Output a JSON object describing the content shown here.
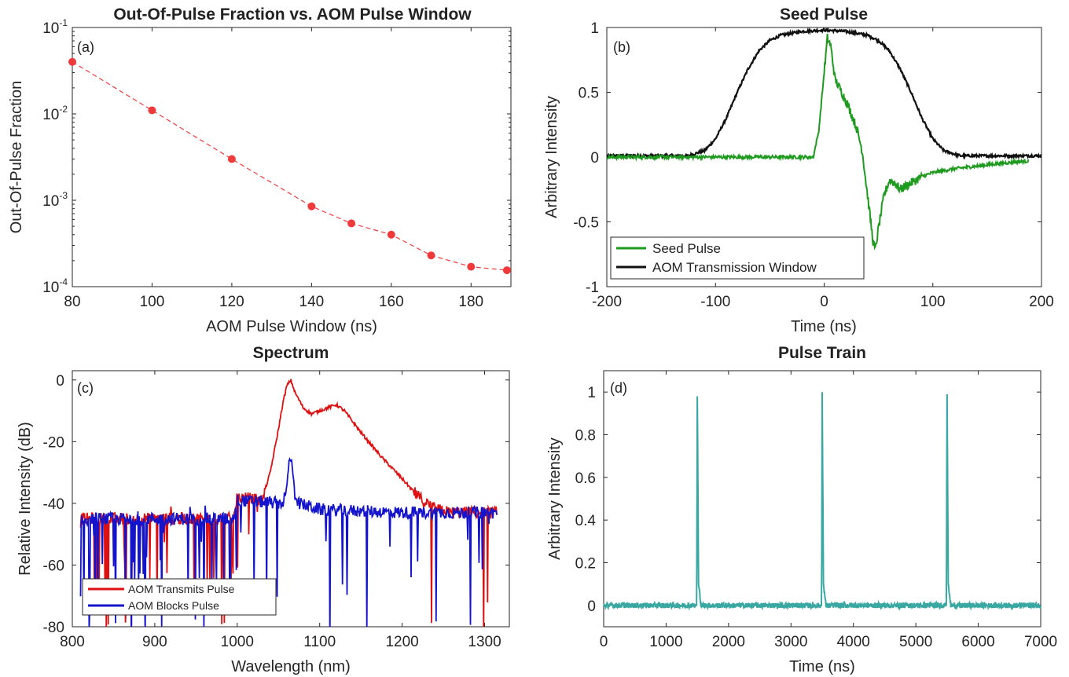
{
  "chart_data": [
    {
      "id": "a",
      "type": "scatter",
      "title": "Out-Of-Pulse Fraction vs. AOM Pulse Window",
      "panel_label": "(a)",
      "xlabel": "AOM Pulse Window (ns)",
      "ylabel": "Out-Of-Pulse Fraction",
      "xlim": [
        80,
        190
      ],
      "ylim": [
        0.0001,
        0.1
      ],
      "yscale": "log",
      "xticks": [
        "80",
        "100",
        "120",
        "140",
        "160",
        "180"
      ],
      "yticks": [
        {
          "base": "10",
          "exp": "-4"
        },
        {
          "base": "10",
          "exp": "-3"
        },
        {
          "base": "10",
          "exp": "-2"
        },
        {
          "base": "10",
          "exp": "-1"
        }
      ],
      "series": [
        {
          "name": "Out-Of-Pulse Fraction",
          "color": "#ee3a3a",
          "x": [
            80,
            100,
            120,
            140,
            150,
            160,
            170,
            180,
            189
          ],
          "y": [
            0.04,
            0.011,
            0.003,
            0.00085,
            0.00054,
            0.0004,
            0.00023,
            0.00017,
            0.000155
          ]
        }
      ]
    },
    {
      "id": "b",
      "type": "line",
      "title": "Seed Pulse",
      "panel_label": "(b)",
      "xlabel": "Time (ns)",
      "ylabel": "Arbitrary Intensity",
      "xlim": [
        -200,
        200
      ],
      "ylim": [
        -1,
        1
      ],
      "xticks": [
        "-200",
        "-100",
        "0",
        "100",
        "200"
      ],
      "yticks": [
        "-1",
        "-0.5",
        "0",
        "0.5",
        "1"
      ],
      "legend": {
        "position": "bottom-left",
        "entries": [
          "Seed Pulse",
          "AOM Transmission Window"
        ]
      },
      "series": [
        {
          "name": "Seed Pulse",
          "color": "#1e9a1e",
          "x": [
            -200,
            -10,
            -5,
            0,
            3,
            6,
            10,
            15,
            22,
            30,
            35,
            40,
            45,
            47,
            50,
            55,
            60,
            65,
            70,
            80,
            90,
            100,
            120,
            140,
            160,
            188
          ],
          "y": [
            0,
            0,
            0.2,
            0.65,
            0.92,
            0.86,
            0.6,
            0.52,
            0.4,
            0.22,
            0.05,
            -0.3,
            -0.65,
            -0.72,
            -0.55,
            -0.3,
            -0.18,
            -0.2,
            -0.25,
            -0.2,
            -0.15,
            -0.12,
            -0.09,
            -0.07,
            -0.05,
            -0.03
          ]
        },
        {
          "name": "AOM Transmission Window",
          "color": "#111111",
          "x": [
            -200,
            -125,
            -110,
            -100,
            -90,
            -80,
            -70,
            -60,
            -50,
            -40,
            -20,
            0,
            20,
            40,
            50,
            60,
            70,
            80,
            90,
            100,
            110,
            125,
            200
          ],
          "y": [
            0.01,
            0.01,
            0.05,
            0.14,
            0.3,
            0.5,
            0.68,
            0.82,
            0.9,
            0.94,
            0.97,
            0.98,
            0.97,
            0.94,
            0.9,
            0.82,
            0.68,
            0.5,
            0.3,
            0.14,
            0.05,
            0.01,
            0.01
          ]
        }
      ]
    },
    {
      "id": "c",
      "type": "line",
      "title": "Spectrum",
      "panel_label": "(c)",
      "xlabel": "Wavelength (nm)",
      "ylabel": "Relative Intensity (dB)",
      "xlim": [
        800,
        1330
      ],
      "ylim": [
        -80,
        3
      ],
      "xticks": [
        "800",
        "900",
        "1000",
        "1100",
        "1200",
        "1300"
      ],
      "yticks": [
        "-80",
        "-60",
        "-40",
        "-20",
        "0"
      ],
      "legend": {
        "position": "bottom-left",
        "entries": [
          "AOM Transmits Pulse",
          "AOM Blocks Pulse"
        ]
      },
      "series": [
        {
          "name": "AOM Transmits Pulse",
          "color": "#dd1111",
          "x": [
            810,
            995,
            1000,
            1030,
            1040,
            1050,
            1055,
            1060,
            1065,
            1070,
            1080,
            1090,
            1100,
            1110,
            1120,
            1130,
            1150,
            1175,
            1200,
            1220,
            1240,
            1260,
            1300,
            1315
          ],
          "y": [
            -45,
            -45,
            -38,
            -39,
            -30,
            -16,
            -8,
            -2,
            0,
            -4,
            -9,
            -11,
            -10,
            -9,
            -8,
            -10,
            -17,
            -25,
            -32,
            -38,
            -42,
            -43,
            -43,
            -43
          ]
        },
        {
          "name": "AOM Blocks Pulse",
          "color": "#1414cc",
          "x": [
            810,
            995,
            1000,
            1055,
            1060,
            1063,
            1066,
            1070,
            1075,
            1100,
            1200,
            1315
          ],
          "y": [
            -45,
            -45,
            -39,
            -40,
            -35,
            -26,
            -26,
            -37,
            -40,
            -42,
            -43,
            -43
          ]
        }
      ]
    },
    {
      "id": "d",
      "type": "line",
      "title": "Pulse Train",
      "panel_label": "(d)",
      "xlabel": "Time (ns)",
      "ylabel": "Arbitrary Intensity",
      "xlim": [
        0,
        7000
      ],
      "ylim": [
        -0.1,
        1.1
      ],
      "xticks": [
        "0",
        "1000",
        "2000",
        "3000",
        "4000",
        "5000",
        "6000",
        "7000"
      ],
      "yticks": [
        "0",
        "0.2",
        "0.4",
        "0.6",
        "0.8",
        "1"
      ],
      "series": [
        {
          "name": "Pulse Train",
          "color": "#3aa8a2",
          "x": [
            0,
            1490,
            1500,
            1520,
            1560,
            3490,
            3500,
            3520,
            3560,
            5490,
            5500,
            5520,
            5560,
            7000
          ],
          "y": [
            0,
            0,
            0.98,
            0.1,
            0,
            0,
            1.0,
            0.1,
            0,
            0,
            0.99,
            0.1,
            0,
            0
          ]
        }
      ]
    }
  ]
}
